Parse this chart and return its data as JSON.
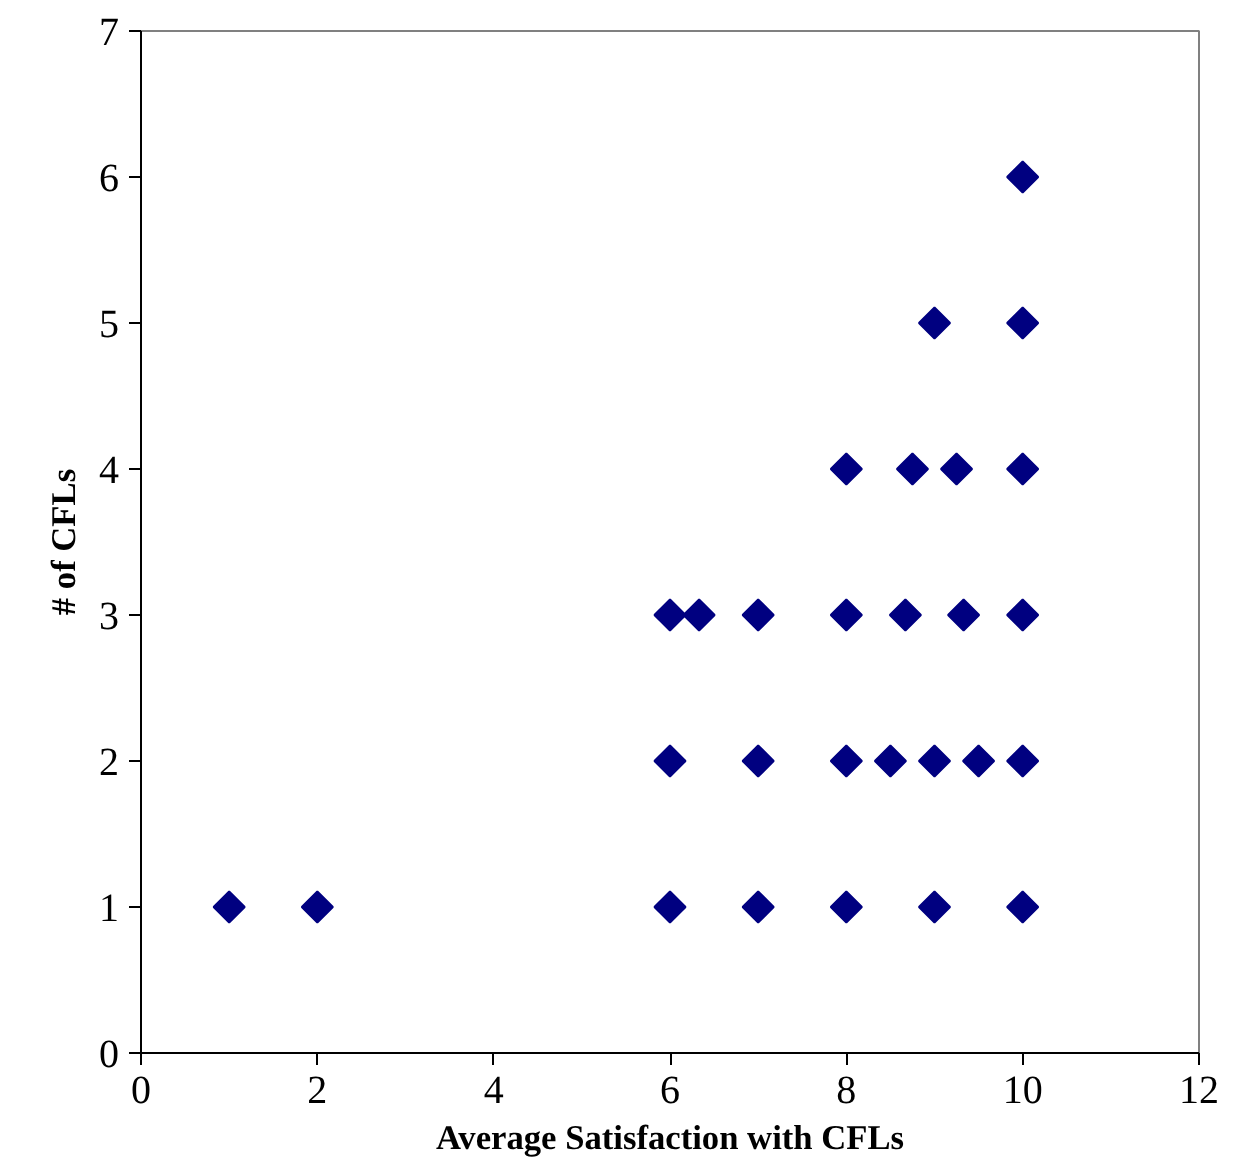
{
  "chart_data": {
    "type": "scatter",
    "xlabel": "Average Satisfaction with CFLs",
    "ylabel": "# of CFLs",
    "x": [
      1,
      2,
      6,
      7,
      8,
      9,
      10,
      6,
      7,
      8,
      8.5,
      9,
      9.5,
      10,
      6,
      6.33,
      7,
      8,
      8.67,
      9.33,
      10,
      8,
      8.75,
      9.25,
      10,
      9,
      10,
      10
    ],
    "series": [
      {
        "color": "#000080",
        "values": [
          1,
          1,
          1,
          1,
          1,
          1,
          1,
          2,
          2,
          2,
          2,
          2,
          2,
          2,
          3,
          3,
          3,
          3,
          3,
          3,
          3,
          4,
          4,
          4,
          4,
          5,
          5,
          6
        ]
      }
    ],
    "xlim": [
      0,
      12
    ],
    "xticks": [
      0,
      2,
      4,
      6,
      8,
      10,
      12
    ],
    "ylim": [
      0,
      7
    ],
    "yticks": [
      0,
      1,
      2,
      3,
      4,
      5,
      6,
      7
    ],
    "marker": "diamond",
    "grid": false
  }
}
